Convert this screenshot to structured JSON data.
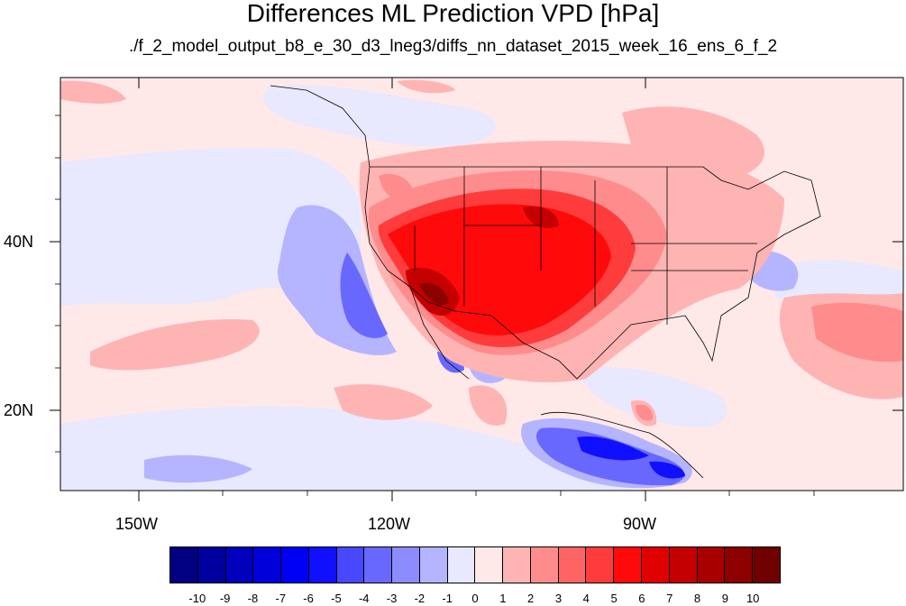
{
  "title": "Differences ML Prediction VPD [hPa]",
  "subtitle": "./f_2_model_output_b8_e_30_d3_lneg3/diffs_nn_dataset_2015_week_16_ens_6_f_2",
  "axes": {
    "lat_labels": [
      "40N",
      "20N"
    ],
    "lon_labels": [
      "150W",
      "120W",
      "90W"
    ]
  },
  "colorbar": {
    "labels": [
      "-10",
      "-9",
      "-8",
      "-7",
      "-6",
      "-5",
      "-4",
      "-3",
      "-2",
      "-1",
      "0",
      "1",
      "2",
      "3",
      "4",
      "5",
      "6",
      "7",
      "8",
      "9",
      "10"
    ],
    "colors": [
      "#000080",
      "#00009e",
      "#0000bd",
      "#0000db",
      "#0000f5",
      "#1010ff",
      "#4848ff",
      "#6868ff",
      "#8c8cff",
      "#b4b4ff",
      "#e8e8ff",
      "#ffe8e8",
      "#ffb4b4",
      "#ff8c8c",
      "#ff6464",
      "#ff3c3c",
      "#ff0a0a",
      "#e00000",
      "#c40000",
      "#a80000",
      "#8c0000",
      "#6e0000"
    ]
  },
  "map": {
    "base_color": "#ffe8e8",
    "border_color": "#000000"
  }
}
